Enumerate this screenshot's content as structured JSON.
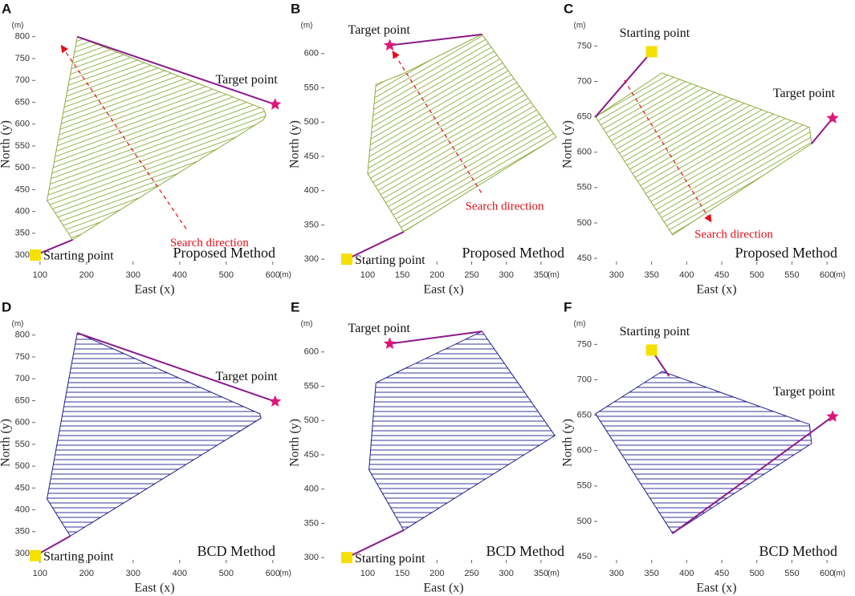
{
  "chart_data": [
    {
      "type": "line",
      "panel": "A",
      "method": "Proposed Method",
      "xlabel": "East (x)",
      "ylabel": "North (y)",
      "xunit": "(m)",
      "yunit": "(m)",
      "xlim": [
        83,
        609
      ],
      "ylim": [
        278,
        829
      ],
      "xticks": [
        100,
        200,
        300,
        400,
        500,
        600
      ],
      "yticks": [
        300,
        350,
        400,
        450,
        500,
        550,
        600,
        650,
        700,
        750,
        800
      ],
      "boundary": {
        "x": [
          180,
          580,
          585,
          580,
          170,
          115
        ],
        "y": [
          800,
          635,
          620,
          610,
          335,
          425
        ]
      },
      "start": {
        "label": "Starting point",
        "x": 90,
        "y": 300
      },
      "entry": {
        "x": 170,
        "y": 335
      },
      "exit": {
        "x": 180,
        "y": 800
      },
      "target": {
        "label": "Target point",
        "x": 605,
        "y": 645
      },
      "direction": {
        "label": "Search direction",
        "x": [
          414,
          147
        ],
        "y": [
          360,
          778
        ],
        "label_at": "tail"
      },
      "hatch_angle": 20,
      "hatch_color": "#8cab3a",
      "path_color": "#8b1a8b",
      "start_color": "#f5e000",
      "target_color": "#e0157a"
    },
    {
      "type": "line",
      "panel": "B",
      "method": "Proposed Method",
      "xlabel": "East (x)",
      "ylabel": "North (y)",
      "xunit": "(m)",
      "yunit": "(m)",
      "xlim": [
        33,
        386
      ],
      "ylim": [
        292,
        643
      ],
      "xticks": [
        100,
        150,
        200,
        250,
        300,
        350
      ],
      "yticks": [
        300,
        350,
        400,
        450,
        500,
        550,
        600
      ],
      "boundary": {
        "x": [
          265,
          372,
          152,
          100,
          112,
          150
        ],
        "y": [
          628,
          478,
          340,
          425,
          555,
          570
        ]
      },
      "start": {
        "label": "Starting point",
        "x": 70,
        "y": 300
      },
      "entry": {
        "x": 152,
        "y": 340
      },
      "exit": {
        "x": 265,
        "y": 628
      },
      "target": {
        "label": "Target point",
        "x": 132,
        "y": 612
      },
      "direction": {
        "label": "Search direction",
        "x": [
          264,
          137
        ],
        "y": [
          397,
          602
        ],
        "label_at": "tail"
      },
      "hatch_angle": 30,
      "hatch_color": "#8cab3a",
      "path_color": "#8b1a8b",
      "start_color": "#f5e000",
      "target_color": "#e0157a"
    },
    {
      "type": "line",
      "panel": "C",
      "method": "Proposed Method",
      "xlabel": "East (x)",
      "ylabel": "North (y)",
      "xunit": "(m)",
      "yunit": "(m)",
      "xlim": [
        268,
        617
      ],
      "ylim": [
        441,
        781
      ],
      "xticks": [
        300,
        350,
        400,
        450,
        500,
        550,
        600
      ],
      "yticks": [
        450,
        500,
        550,
        600,
        650,
        700,
        750
      ],
      "boundary": {
        "x": [
          270,
          365,
          575,
          578,
          380
        ],
        "y": [
          650,
          712,
          635,
          612,
          483
        ]
      },
      "start": {
        "label": "Starting point",
        "x": 350,
        "y": 742
      },
      "entry": {
        "x": 270,
        "y": 650
      },
      "exit": {
        "x": 578,
        "y": 612
      },
      "target": {
        "label": "Target point",
        "x": 608,
        "y": 648
      },
      "direction": {
        "label": "Search direction",
        "x": [
          311,
          434
        ],
        "y": [
          702,
          503
        ],
        "label_at": "head"
      },
      "hatch_angle": 30,
      "hatch_color": "#8cab3a",
      "path_color": "#8b1a8b",
      "start_color": "#f5e000",
      "target_color": "#e0157a"
    },
    {
      "type": "line",
      "panel": "D",
      "method": "BCD Method",
      "xlabel": "East (x)",
      "ylabel": "North (y)",
      "xunit": "(m)",
      "yunit": "(m)",
      "xlim": [
        83,
        609
      ],
      "ylim": [
        278,
        829
      ],
      "xticks": [
        100,
        200,
        300,
        400,
        500,
        600
      ],
      "yticks": [
        300,
        350,
        400,
        450,
        500,
        550,
        600,
        650,
        700,
        750,
        800
      ],
      "boundary": {
        "x": [
          180,
          572,
          575,
          165,
          115
        ],
        "y": [
          805,
          620,
          610,
          340,
          425
        ]
      },
      "start": {
        "label": "Starting point",
        "x": 90,
        "y": 295
      },
      "entry": {
        "x": 165,
        "y": 340
      },
      "exit": {
        "x": 180,
        "y": 805
      },
      "target": {
        "label": "Target point",
        "x": 605,
        "y": 648
      },
      "hatch_angle": 0,
      "hatch_color": "#1c1c8c",
      "path_color": "#8b1a8b",
      "start_color": "#f5e000",
      "target_color": "#e0157a"
    },
    {
      "type": "line",
      "panel": "E",
      "method": "BCD Method",
      "xlabel": "East (x)",
      "ylabel": "North (y)",
      "xunit": "(m)",
      "yunit": "(m)",
      "xlim": [
        33,
        386
      ],
      "ylim": [
        292,
        643
      ],
      "xticks": [
        100,
        150,
        200,
        250,
        300,
        350
      ],
      "yticks": [
        300,
        350,
        400,
        450,
        500,
        550,
        600
      ],
      "boundary": {
        "x": [
          265,
          370,
          152,
          102,
          112,
          152
        ],
        "y": [
          630,
          478,
          340,
          428,
          555,
          575
        ]
      },
      "start": {
        "label": "Starting point",
        "x": 70,
        "y": 300
      },
      "entry": {
        "x": 152,
        "y": 340
      },
      "exit": {
        "x": 265,
        "y": 630
      },
      "target": {
        "label": "Target point",
        "x": 132,
        "y": 612
      },
      "hatch_angle": 0,
      "hatch_color": "#1c1c8c",
      "path_color": "#8b1a8b",
      "start_color": "#f5e000",
      "target_color": "#e0157a"
    },
    {
      "type": "line",
      "panel": "F",
      "method": "BCD Method",
      "xlabel": "East (x)",
      "ylabel": "North (y)",
      "xunit": "(m)",
      "yunit": "(m)",
      "xlim": [
        268,
        617
      ],
      "ylim": [
        441,
        781
      ],
      "xticks": [
        300,
        350,
        400,
        450,
        500,
        550,
        600
      ],
      "yticks": [
        450,
        500,
        550,
        600,
        650,
        700,
        750
      ],
      "boundary": {
        "x": [
          270,
          365,
          575,
          578,
          380
        ],
        "y": [
          652,
          712,
          637,
          610,
          483
        ]
      },
      "start": {
        "label": "Starting point",
        "x": 350,
        "y": 742
      },
      "entry": {
        "x": 375,
        "y": 705
      },
      "exit": {
        "x": 380,
        "y": 483
      },
      "target": {
        "label": "Target point",
        "x": 608,
        "y": 648
      },
      "hatch_angle": 0,
      "hatch_color": "#1c1c8c",
      "path_color": "#8b1a8b",
      "start_color": "#f5e000",
      "target_color": "#e0157a"
    }
  ]
}
